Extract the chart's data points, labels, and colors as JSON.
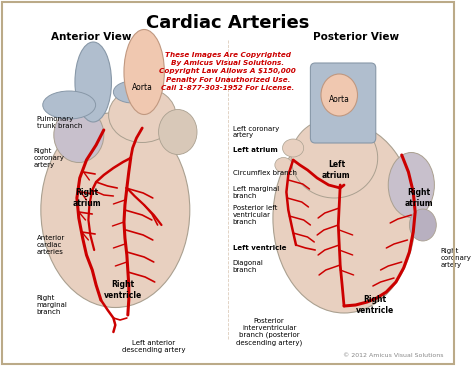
{
  "title": "Cardiac Arteries",
  "title_fontsize": 13,
  "title_fontweight": "bold",
  "bg_color": "#ffffff",
  "border_color": "#bbaa88",
  "heart_fill": "#e8d0c0",
  "heart_edge": "#aaa090",
  "atrium_fill": "#d8c0b8",
  "vessel_blue": "#b0bece",
  "vessel_blue_edge": "#8898a8",
  "aorta_fill": "#f0c8b0",
  "aorta_edge": "#c09880",
  "artery_color": "#cc0000",
  "label_fontsize": 5.0,
  "bold_label_fontsize": 5.5,
  "view_label_fontsize": 7.5,
  "copyright_text": "These Images Are Copyrighted\nBy Amicus Visual Solutions.\nCopyright Law Allows A $150,000\nPenalty For Unauthorized Use.\nCall 1-877-303-1952 For License.",
  "copyright_color": "#cc0000",
  "copyright_fontsize": 5.2,
  "watermark": "© 2012 Amicus Visual Solutions",
  "watermark_fontsize": 4.5
}
